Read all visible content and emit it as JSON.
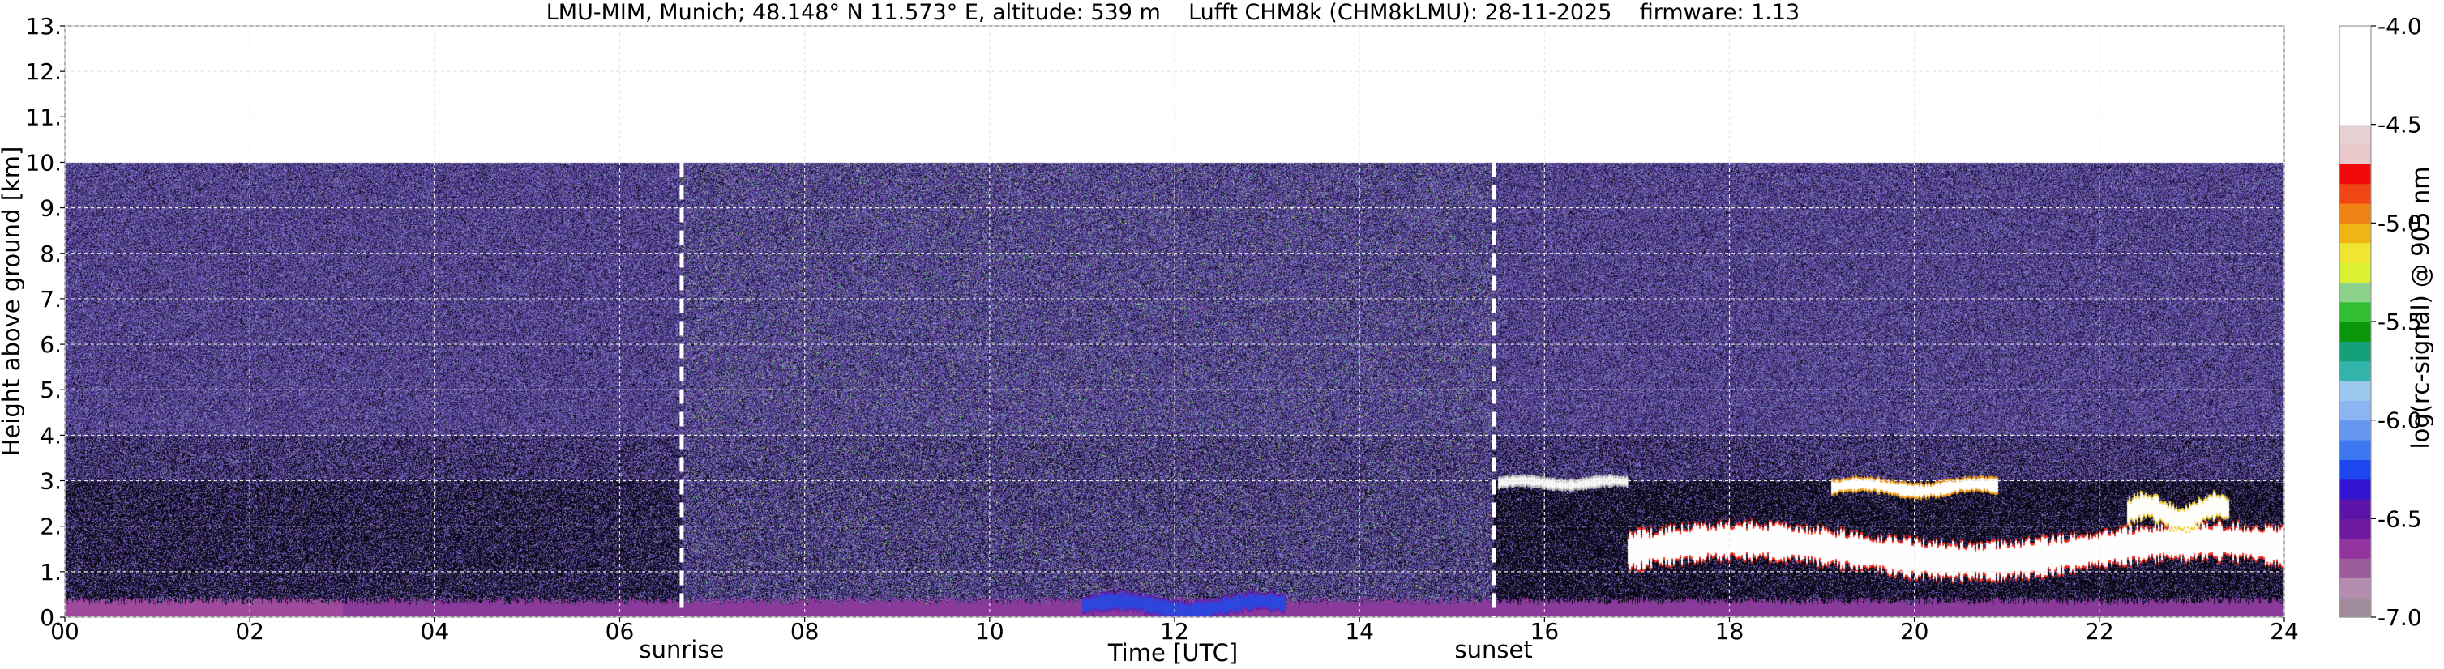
{
  "chart_data": {
    "type": "heatmap",
    "title": "LMU-MIM, Munich; 48.148° N 11.573° E, altitude: 539 m    Lufft CHM8k (CHM8kLMU): 28-11-2025    firmware: 1.13",
    "xlabel": "Time [UTC]",
    "ylabel": "Height above ground [km]",
    "xlim": [
      0,
      24
    ],
    "ylim": [
      0,
      13
    ],
    "x_ticks": [
      0,
      2,
      4,
      6,
      8,
      10,
      12,
      14,
      16,
      18,
      20,
      22,
      24
    ],
    "x_tick_labels": [
      "00",
      "02",
      "04",
      "06",
      "08",
      "10",
      "12",
      "14",
      "16",
      "18",
      "20",
      "22",
      "24"
    ],
    "y_ticks": [
      0,
      1,
      2,
      3,
      4,
      5,
      6,
      7,
      8,
      9,
      10,
      11,
      12,
      13
    ],
    "y_tick_labels": [
      "0.",
      "1.",
      "2.",
      "3.",
      "4.",
      "5.",
      "6.",
      "7.",
      "8.",
      "9.",
      "10.",
      "11.",
      "12.",
      "13."
    ],
    "grid": true,
    "data_top_km": 10,
    "markers": [
      {
        "label": "sunrise",
        "time": 6.67
      },
      {
        "label": "sunset",
        "time": 15.45
      }
    ],
    "colorbar": {
      "label": "log(rc-signal) @ 905 nm",
      "range": [
        -7.0,
        -4.0
      ],
      "ticks": [
        -4.0,
        -4.5,
        -5.0,
        -5.5,
        -6.0,
        -6.5,
        -7.0
      ],
      "tick_labels": [
        "-4.0",
        "-4.5",
        "-5.0",
        "-5.5",
        "-6.0",
        "-6.5",
        "-7.0"
      ],
      "colors": [
        "#a08c9c",
        "#b48cae",
        "#9c5c9c",
        "#9432a0",
        "#6e1aa0",
        "#5a14a8",
        "#3214d2",
        "#1e46f0",
        "#3c78f0",
        "#6496f0",
        "#8cb4f0",
        "#9cc8f0",
        "#32b4aa",
        "#14a078",
        "#0a960a",
        "#32be32",
        "#8cd28c",
        "#dcf032",
        "#f0e632",
        "#f0b414",
        "#f08214",
        "#f04614",
        "#f00a0a",
        "#e8c8c8",
        "#e6d2d2",
        "#ffffff",
        "#ffffff",
        "#ffffff",
        "#ffffff",
        "#ffffff"
      ]
    },
    "features": [
      {
        "name": "surface layer",
        "t_start": 0,
        "t_end": 24,
        "h_bottom": 0.0,
        "h_top": 0.45
      },
      {
        "name": "low layer enhancement",
        "t_start": 11.0,
        "t_end": 13.2,
        "h_bottom": 0.05,
        "h_top": 0.45
      },
      {
        "name": "cloud layer",
        "t_start": 15.5,
        "t_end": 16.9,
        "h_bottom": 2.85,
        "h_top": 3.05
      },
      {
        "name": "cloud layer",
        "t_start": 19.1,
        "t_end": 20.9,
        "h_bottom": 2.7,
        "h_top": 3.0
      },
      {
        "name": "cloud layer",
        "t_start": 16.9,
        "t_end": 24.0,
        "h_bottom": 1.0,
        "h_top": 1.9
      },
      {
        "name": "cloud layer",
        "t_start": 22.3,
        "t_end": 23.4,
        "h_bottom": 2.0,
        "h_top": 2.6
      }
    ]
  }
}
